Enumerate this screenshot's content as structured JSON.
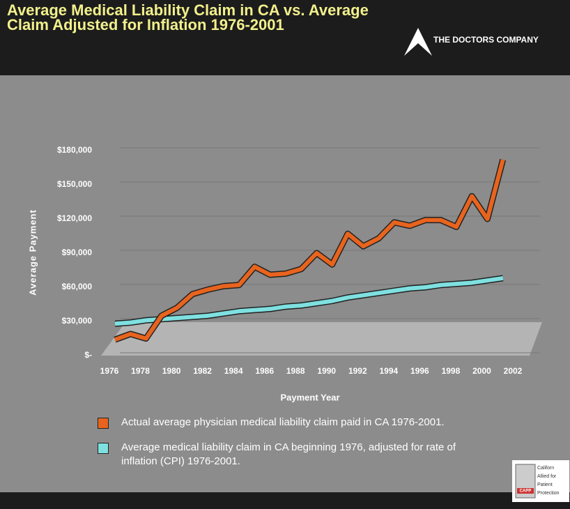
{
  "title": "Average Medical Liability Claim in CA vs. Average Claim Adjusted for Inflation 1976-2001",
  "logo": "THE DOCTORS COMPANY",
  "badge": {
    "name": "CAPP",
    "lines": [
      "Californ",
      "Allied for",
      "Patient",
      "Protection"
    ]
  },
  "chart_data": {
    "type": "line",
    "x_label": "Payment Year",
    "y_label": "Average Payment",
    "x": [
      1976,
      1977,
      1978,
      1979,
      1980,
      1981,
      1982,
      1983,
      1984,
      1985,
      1986,
      1987,
      1988,
      1989,
      1990,
      1991,
      1992,
      1993,
      1994,
      1995,
      1996,
      1997,
      1998,
      1999,
      2000,
      2001
    ],
    "series": [
      {
        "name": "Actual average physician medical liability claim paid in CA 1976-2001.",
        "color": "#e8641e",
        "values": [
          14000,
          19000,
          15000,
          35000,
          42000,
          54000,
          58000,
          61000,
          62000,
          78000,
          71000,
          72000,
          76000,
          90000,
          80000,
          107000,
          96000,
          103000,
          117000,
          114000,
          119000,
          119000,
          113000,
          140000,
          120000,
          172000
        ]
      },
      {
        "name": "Average medical liability claim in CA beginning 1976, adjusted for rate of inflation (CPI) 1976-2001.",
        "color": "#7fe0e0",
        "values": [
          28000,
          29000,
          31000,
          32000,
          33000,
          34000,
          35000,
          37000,
          39000,
          40000,
          41000,
          43000,
          44000,
          46000,
          48000,
          51000,
          53000,
          55000,
          57000,
          59000,
          60000,
          62000,
          63000,
          64000,
          66000,
          68000
        ]
      }
    ],
    "xlim": [
      1976,
      2002
    ],
    "xticks": [
      1976,
      1978,
      1980,
      1982,
      1984,
      1986,
      1988,
      1990,
      1992,
      1994,
      1996,
      1998,
      2000,
      2002
    ],
    "ylim": [
      0,
      180000
    ],
    "yticks": [
      {
        "value": 0,
        "label": "$-"
      },
      {
        "value": 30000,
        "label": "$30,000"
      },
      {
        "value": 60000,
        "label": "$60,000"
      },
      {
        "value": 90000,
        "label": "$90,000"
      },
      {
        "value": 120000,
        "label": "$120,000"
      },
      {
        "value": 150000,
        "label": "$150,000"
      },
      {
        "value": 180000,
        "label": "$180,000"
      }
    ],
    "grid": true
  }
}
